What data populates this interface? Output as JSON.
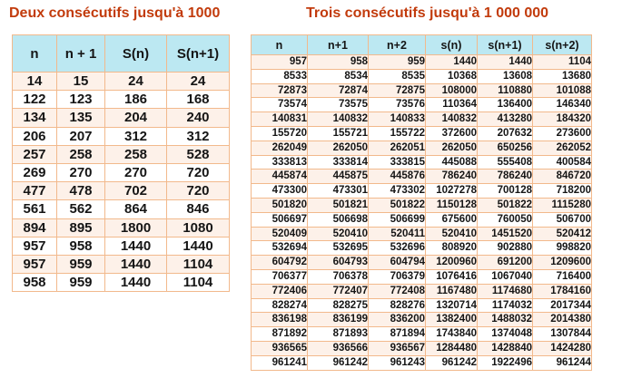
{
  "colors": {
    "title_text": "#c23b0c",
    "header_background": "#bce8f2",
    "row_odd_background": "#fdf1e9",
    "row_even_background": "#ffffff",
    "border_outer": "#df8f4d",
    "border_inner": "#f2b98c",
    "cell_text": "#151515",
    "page_background": "#ffffff"
  },
  "chart_data": [
    {
      "type": "table",
      "title": "Deux consécutifs jusqu'à 1000",
      "columns": [
        "n",
        "n + 1",
        "S(n)",
        "S(n+1)"
      ],
      "rows": [
        [
          14,
          15,
          24,
          24
        ],
        [
          122,
          123,
          186,
          168
        ],
        [
          134,
          135,
          204,
          240
        ],
        [
          206,
          207,
          312,
          312
        ],
        [
          257,
          258,
          258,
          528
        ],
        [
          269,
          270,
          270,
          720
        ],
        [
          477,
          478,
          702,
          720
        ],
        [
          561,
          562,
          864,
          846
        ],
        [
          894,
          895,
          1800,
          1080
        ],
        [
          957,
          958,
          1440,
          1440
        ],
        [
          957,
          959,
          1440,
          1104
        ],
        [
          958,
          959,
          1440,
          1104
        ]
      ]
    },
    {
      "type": "table",
      "title": "Trois consécutifs jusqu'à 1 000 000",
      "columns": [
        "n",
        "n+1",
        "n+2",
        "s(n)",
        "s(n+1)",
        "s(n+2)"
      ],
      "rows": [
        [
          957,
          958,
          959,
          1440,
          1440,
          1104
        ],
        [
          8533,
          8534,
          8535,
          10368,
          13608,
          13680
        ],
        [
          72873,
          72874,
          72875,
          108000,
          110880,
          101088
        ],
        [
          73574,
          73575,
          73576,
          110364,
          136400,
          146340
        ],
        [
          140831,
          140832,
          140833,
          140832,
          413280,
          184320
        ],
        [
          155720,
          155721,
          155722,
          372600,
          207632,
          273600
        ],
        [
          262049,
          262050,
          262051,
          262050,
          650256,
          262052
        ],
        [
          333813,
          333814,
          333815,
          445088,
          555408,
          400584
        ],
        [
          445874,
          445875,
          445876,
          786240,
          786240,
          846720
        ],
        [
          473300,
          473301,
          473302,
          1027278,
          700128,
          718200
        ],
        [
          501820,
          501821,
          501822,
          1150128,
          501822,
          1115280
        ],
        [
          506697,
          506698,
          506699,
          675600,
          760050,
          506700
        ],
        [
          520409,
          520410,
          520411,
          520410,
          1451520,
          520412
        ],
        [
          532694,
          532695,
          532696,
          808920,
          902880,
          998820
        ],
        [
          604792,
          604793,
          604794,
          1200960,
          691200,
          1209600
        ],
        [
          706377,
          706378,
          706379,
          1076416,
          1067040,
          716400
        ],
        [
          772406,
          772407,
          772408,
          1167480,
          1174680,
          1784160
        ],
        [
          828274,
          828275,
          828276,
          1320714,
          1174032,
          2017344
        ],
        [
          836198,
          836199,
          836200,
          1382400,
          1488032,
          2014380
        ],
        [
          871892,
          871893,
          871894,
          1743840,
          1374048,
          1307844
        ],
        [
          936565,
          936566,
          936567,
          1284480,
          1428840,
          1424280
        ],
        [
          961241,
          961242,
          961243,
          961242,
          1922496,
          961244
        ]
      ]
    }
  ]
}
